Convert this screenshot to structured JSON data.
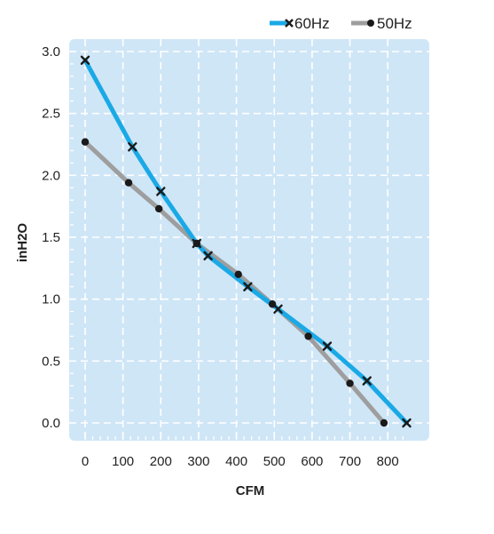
{
  "chart_data": {
    "type": "line",
    "title": "",
    "xlabel": "CFM",
    "ylabel": "inH2O",
    "xlim": [
      -40,
      880
    ],
    "ylim": [
      0,
      3.0
    ],
    "x_ticks": [
      "0",
      "100",
      "200",
      "300",
      "400",
      "500",
      "600",
      "700",
      "800"
    ],
    "y_ticks": [
      "0.0",
      "0.5",
      "1.0",
      "1.5",
      "2.0",
      "2.5",
      "3.0"
    ],
    "grid": true,
    "legend_position": "top-right",
    "plot_background": "#cfe6f7",
    "series": [
      {
        "name": "60Hz",
        "color": "#1aa9e6",
        "marker": "x",
        "points": [
          {
            "x": 0,
            "y": 2.93
          },
          {
            "x": 125,
            "y": 2.23
          },
          {
            "x": 200,
            "y": 1.87
          },
          {
            "x": 295,
            "y": 1.45
          },
          {
            "x": 325,
            "y": 1.35
          },
          {
            "x": 430,
            "y": 1.1
          },
          {
            "x": 510,
            "y": 0.92
          },
          {
            "x": 640,
            "y": 0.62
          },
          {
            "x": 745,
            "y": 0.34
          },
          {
            "x": 850,
            "y": 0.0
          }
        ]
      },
      {
        "name": "50Hz",
        "color": "#9e9e9e",
        "marker": "dot",
        "points": [
          {
            "x": 0,
            "y": 2.27
          },
          {
            "x": 115,
            "y": 1.94
          },
          {
            "x": 195,
            "y": 1.73
          },
          {
            "x": 295,
            "y": 1.45
          },
          {
            "x": 405,
            "y": 1.2
          },
          {
            "x": 495,
            "y": 0.96
          },
          {
            "x": 590,
            "y": 0.7
          },
          {
            "x": 700,
            "y": 0.32
          },
          {
            "x": 790,
            "y": 0.0
          }
        ]
      }
    ]
  }
}
